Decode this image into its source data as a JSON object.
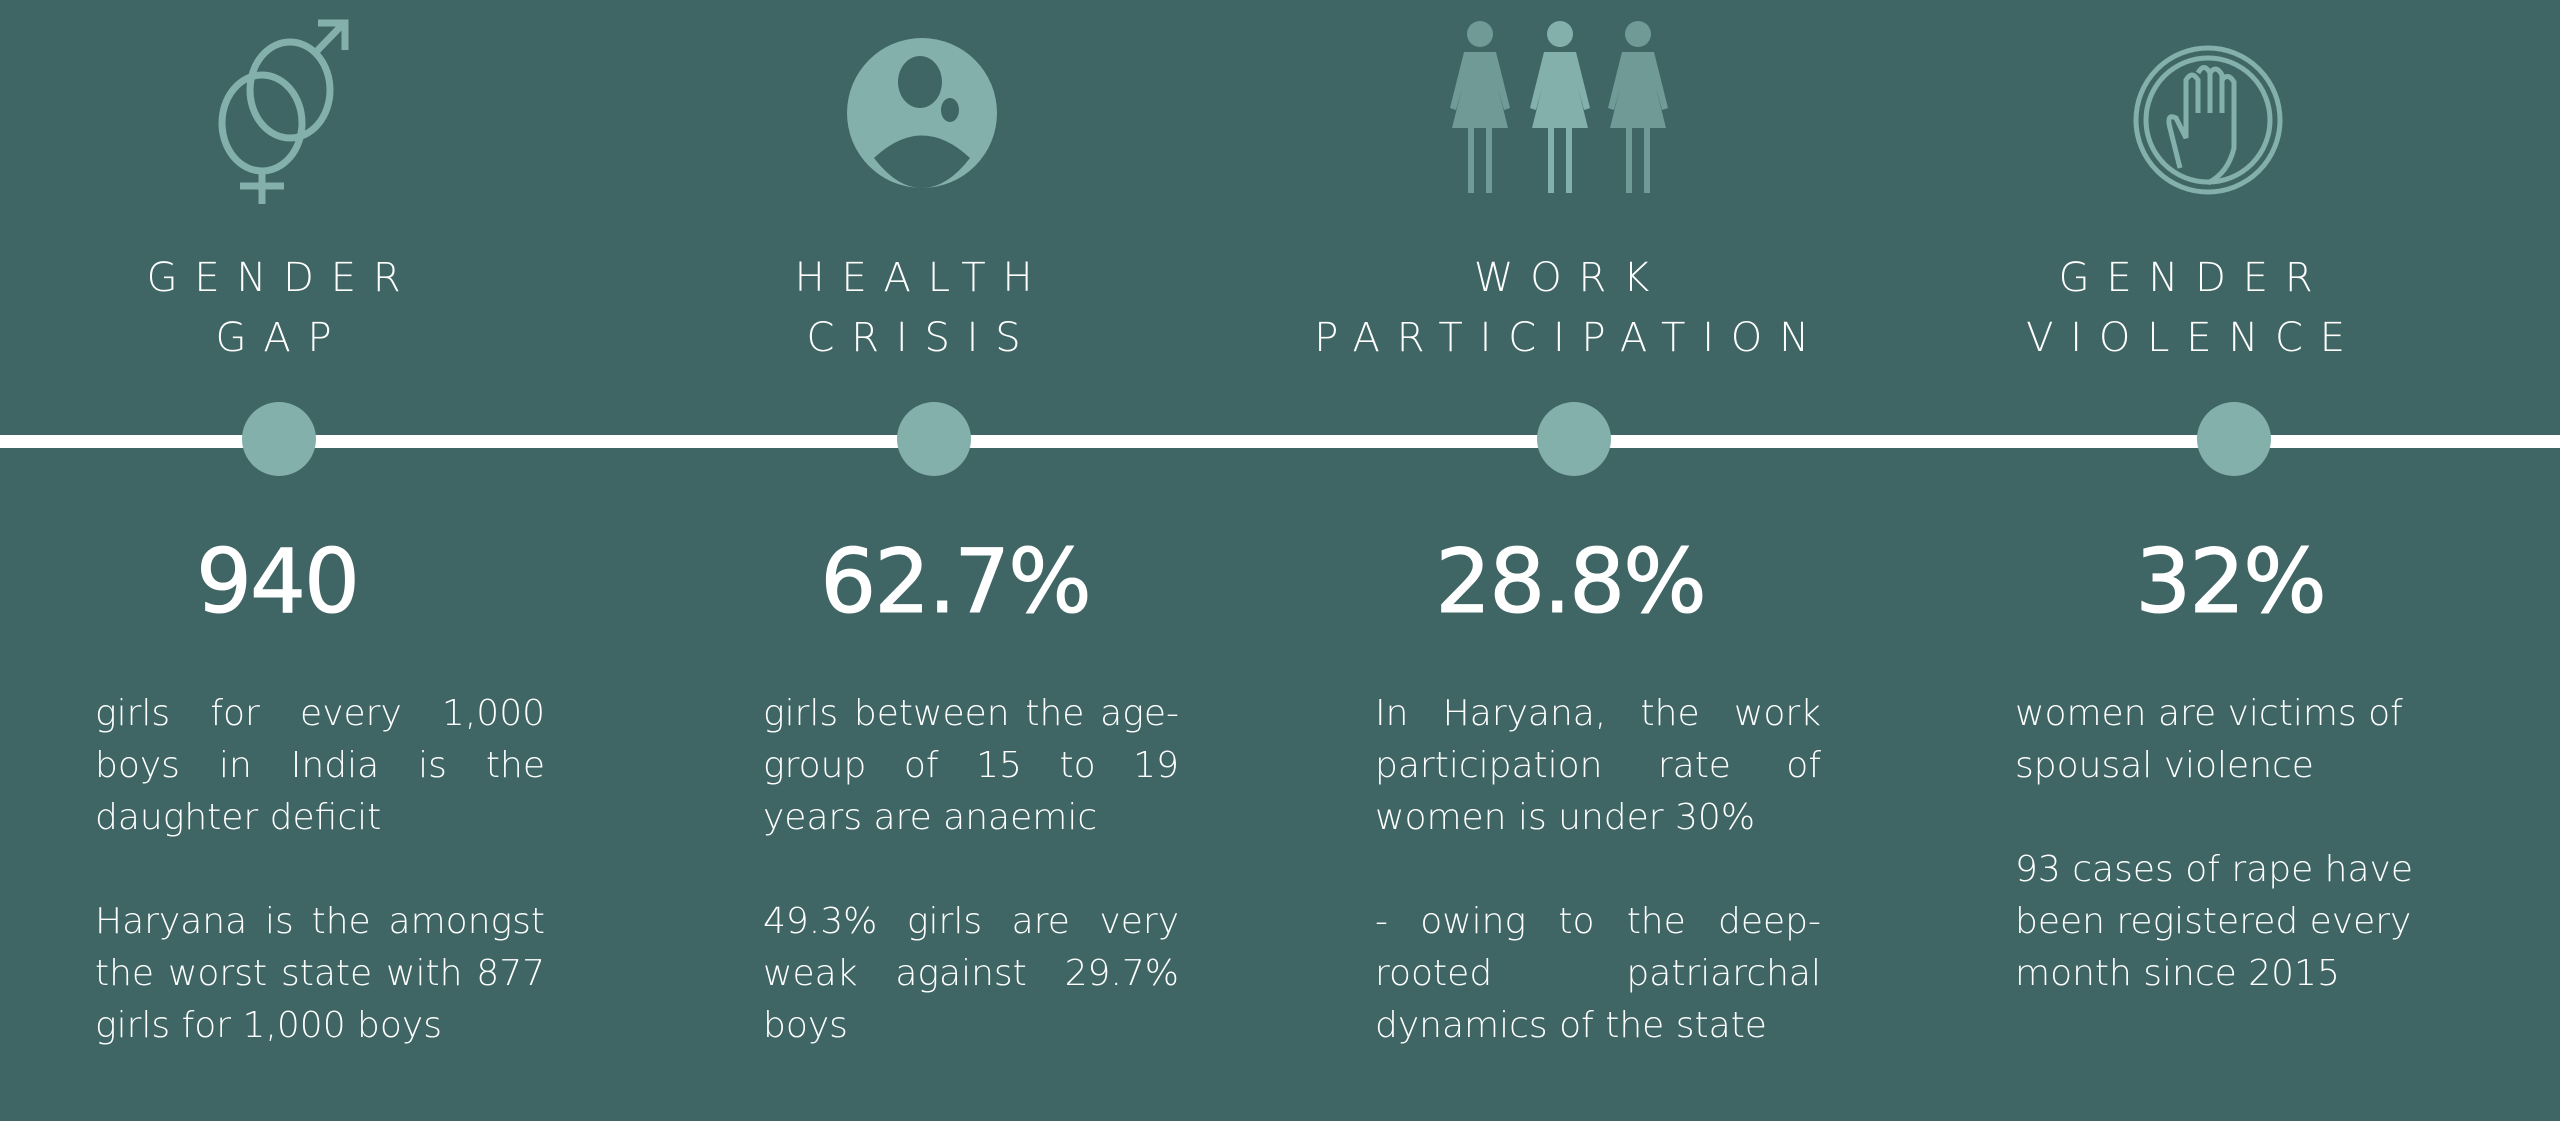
{
  "colors": {
    "background": "#3f6664",
    "accent": "#84b0ab",
    "text": "#ffffff"
  },
  "columns": [
    {
      "icon": "gender-symbols-icon",
      "title": [
        "GENDER",
        "GAP"
      ],
      "stat": "940",
      "paragraphs": [
        "girls for every 1,000 boys in India is the daughter deficit",
        "Haryana is the amongst the worst state with 877 girls for 1,000 boys"
      ]
    },
    {
      "icon": "health-person-icon",
      "title": [
        "HEALTH",
        "CRISIS"
      ],
      "stat": "62.7%",
      "paragraphs": [
        "girls between the age-group of 15 to 19 years are anaemic",
        "49.3% girls are very weak against 29.7% boys"
      ]
    },
    {
      "icon": "three-women-icon",
      "title": [
        "WORK",
        "PARTICIPATION"
      ],
      "stat": "28.8%",
      "paragraphs": [
        "In Haryana, the work participation rate of women is under 30%",
        "- owing to the deep-rooted patriarchal dynamics of the state"
      ]
    },
    {
      "icon": "stop-hand-icon",
      "title": [
        "GENDER",
        "VIOLENCE"
      ],
      "stat": "32%",
      "paragraphs": [
        "women are victims of spousal violence",
        "93 cases of rape have been registered every month since 2015"
      ]
    }
  ]
}
